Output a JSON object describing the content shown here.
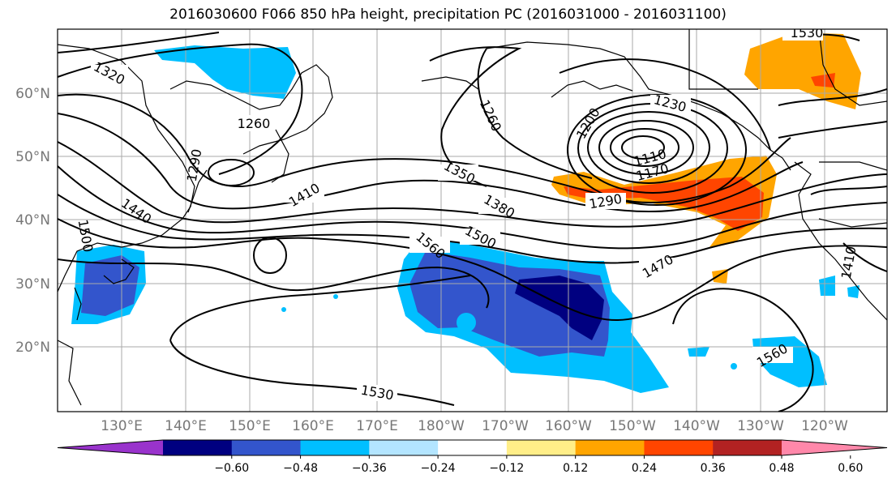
{
  "title": "2016030600 F066 850 hPa height, precipitation PC (2016031000 - 2016031100)",
  "lat_labels": [
    "60°N",
    "50°N",
    "40°N",
    "30°N",
    "20°N"
  ],
  "lon_labels": [
    "130°E",
    "140°E",
    "150°E",
    "160°E",
    "170°E",
    "180°W",
    "170°W",
    "160°W",
    "150°W",
    "140°W",
    "130°W",
    "120°W"
  ],
  "contour_labels": [
    "1320",
    "1260",
    "1290",
    "1440",
    "1500",
    "1350",
    "1410",
    "1380",
    "1560",
    "1500",
    "1260",
    "1200",
    "1230",
    "1110",
    "1170",
    "1290",
    "1470",
    "1560",
    "1530",
    "1530",
    "1410"
  ],
  "colorbar": {
    "colors": [
      "#9933cc",
      "#000080",
      "#3355cc",
      "#00bfff",
      "#b3e5ff",
      "#ffffff",
      "#ffee88",
      "#ffa500",
      "#ff4500",
      "#b22222",
      "#ff88aa"
    ],
    "tick_labels": [
      "−0.60",
      "−0.48",
      "−0.36",
      "−0.24",
      "−0.12",
      "0.12",
      "0.24",
      "0.36",
      "0.48",
      "0.60"
    ]
  }
}
